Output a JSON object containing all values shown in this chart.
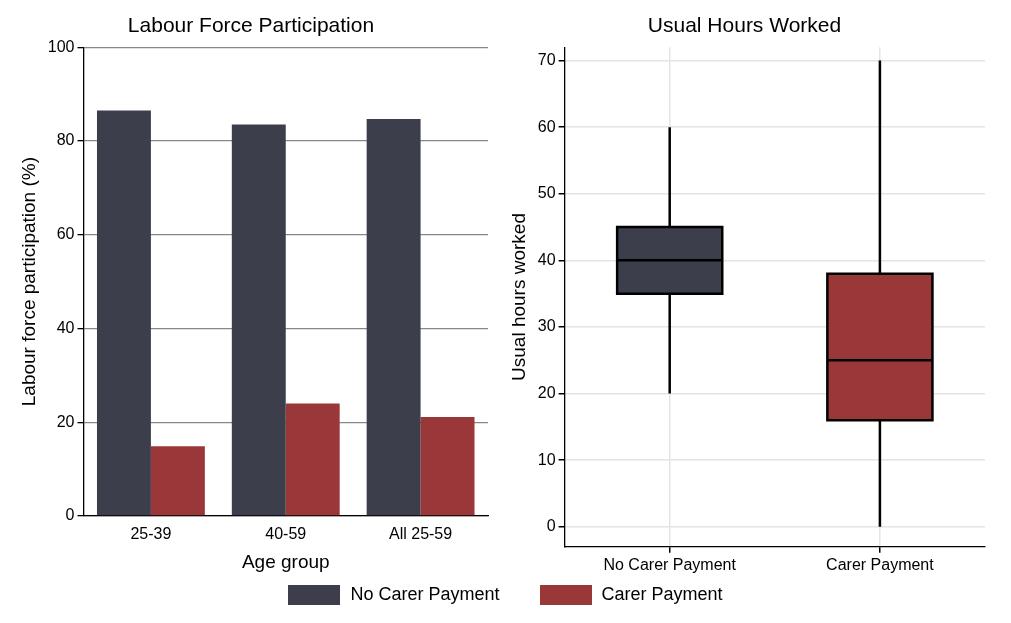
{
  "chart_data": [
    {
      "type": "bar",
      "title": "Labour Force Participation",
      "xlabel": "Age group",
      "ylabel": "Labour force participation (%)",
      "categories": [
        "25-39",
        "40-59",
        "All 25-59"
      ],
      "series": [
        {
          "name": "No Carer Payment",
          "color": "#3c3f4b",
          "values": [
            86.5,
            83.5,
            84.7
          ]
        },
        {
          "name": "Carer Payment",
          "color": "#993739",
          "values": [
            14.9,
            24.0,
            21.1
          ]
        }
      ],
      "ylim": [
        0,
        100
      ],
      "yticks": [
        0,
        20,
        40,
        60,
        80,
        100
      ],
      "grid": "y",
      "legend": "bottom"
    },
    {
      "type": "box",
      "title": "Usual Hours Worked",
      "ylabel": "Usual hours worked",
      "categories": [
        "No Carer Payment",
        "Carer Payment"
      ],
      "colors": [
        "#3c3f4b",
        "#993739"
      ],
      "boxes": [
        {
          "low": 20,
          "q1": 35,
          "median": 40,
          "q3": 45,
          "high": 60
        },
        {
          "low": 0,
          "q1": 16,
          "median": 25,
          "q3": 38,
          "high": 70
        }
      ],
      "ylim": [
        -3,
        72
      ],
      "yticks": [
        0,
        10,
        20,
        30,
        40,
        50,
        60,
        70
      ],
      "grid": true
    }
  ]
}
